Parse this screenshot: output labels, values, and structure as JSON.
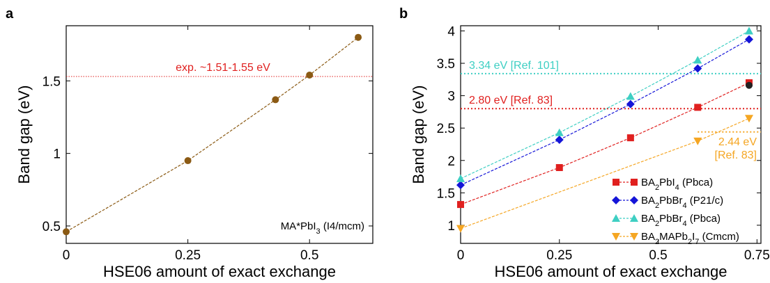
{
  "chart_data": [
    {
      "panel": "a",
      "type": "line",
      "xlabel": "HSE06 amount of exact exchange",
      "ylabel": "Band gap (eV)",
      "xlim": [
        0,
        0.63
      ],
      "ylim": [
        0.38,
        1.88
      ],
      "xticks": [
        0,
        0.25,
        0.5
      ],
      "xtick_labels": [
        "0",
        "0.25",
        "0.5"
      ],
      "yticks": [
        0.5,
        1,
        1.5
      ],
      "ytick_labels": [
        "0.5",
        "1",
        "1.5"
      ],
      "series": [
        {
          "x": [
            0,
            0.25,
            0.43,
            0.5,
            0.6
          ],
          "y": [
            0.46,
            0.95,
            1.37,
            1.54,
            1.8
          ],
          "color": "#8b5a14",
          "marker": "circle",
          "line": "dashed"
        }
      ],
      "reference_lines": [
        {
          "y": 1.53,
          "color": "#e0201f",
          "label": "exp. ~1.51-1.55 eV"
        }
      ],
      "annotation": {
        "text": "MA*PbI",
        "sub": "3",
        "tail": " (I4/mcm)",
        "position": "bottom-right"
      }
    },
    {
      "panel": "b",
      "type": "line",
      "xlabel": "HSE06 amount of exact exchange",
      "ylabel": "Band gap (eV)",
      "xlim": [
        0,
        0.76
      ],
      "ylim": [
        0.72,
        4.08
      ],
      "xticks": [
        0,
        0.25,
        0.5,
        0.75
      ],
      "xtick_labels": [
        "0",
        "0.25",
        "0.5",
        "0.75"
      ],
      "yticks": [
        1,
        1.5,
        2,
        2.5,
        3,
        3.5,
        4
      ],
      "ytick_labels": [
        "1",
        "1.5",
        "2",
        "2.5",
        "3",
        "3.5",
        "4"
      ],
      "legend_position": "bottom-right",
      "series": [
        {
          "name_parts": [
            [
              "BA",
              ""
            ],
            [
              "2",
              "sub"
            ],
            [
              "PbI",
              ""
            ],
            [
              "4",
              "sub"
            ],
            [
              " (Pbca)",
              ""
            ]
          ],
          "x": [
            0,
            0.25,
            0.43,
            0.6,
            0.73
          ],
          "y": [
            1.32,
            1.89,
            2.35,
            2.82,
            3.2
          ],
          "color": "#e0201f",
          "marker": "square"
        },
        {
          "name_parts": [
            [
              "BA",
              ""
            ],
            [
              "2",
              "sub"
            ],
            [
              "PbBr",
              ""
            ],
            [
              "4",
              "sub"
            ],
            [
              " (P21/c)",
              ""
            ]
          ],
          "x": [
            0,
            0.25,
            0.43,
            0.6,
            0.73
          ],
          "y": [
            1.62,
            2.32,
            2.87,
            3.42,
            3.87
          ],
          "color": "#1515d8",
          "marker": "diamond"
        },
        {
          "name_parts": [
            [
              "BA",
              ""
            ],
            [
              "2",
              "sub"
            ],
            [
              "PbBr",
              ""
            ],
            [
              "4",
              "sub"
            ],
            [
              " (Pbca)",
              ""
            ]
          ],
          "x": [
            0,
            0.25,
            0.43,
            0.6,
            0.73
          ],
          "y": [
            1.72,
            2.43,
            2.99,
            3.55,
            4.0
          ],
          "color": "#3ecfc3",
          "marker": "triangle-up"
        },
        {
          "name_parts": [
            [
              "BA",
              ""
            ],
            [
              "2",
              "sub"
            ],
            [
              "MAPb",
              ""
            ],
            [
              "2",
              "sub"
            ],
            [
              "I",
              ""
            ],
            [
              "7",
              "sub"
            ],
            [
              " (Cmcm)",
              ""
            ]
          ],
          "x": [
            0,
            0.6,
            0.73
          ],
          "y": [
            0.95,
            2.3,
            2.65
          ],
          "color": "#f5a623",
          "marker": "triangle-down"
        }
      ],
      "extra_points": [
        {
          "x": 0.73,
          "y": 3.16,
          "color": "#222222",
          "marker": "circle"
        }
      ],
      "reference_lines": [
        {
          "y": 3.34,
          "color": "#3ecfc3",
          "label": "3.34 eV [Ref. 101]",
          "x_start": 0
        },
        {
          "y": 2.8,
          "color": "#e0201f",
          "label": "2.80 eV [Ref. 83]",
          "x_start": 0
        },
        {
          "y": 2.44,
          "color": "#f5a623",
          "label": "2.44 eV",
          "label2": "[Ref. 83]",
          "x_start": 0.6
        }
      ]
    }
  ]
}
